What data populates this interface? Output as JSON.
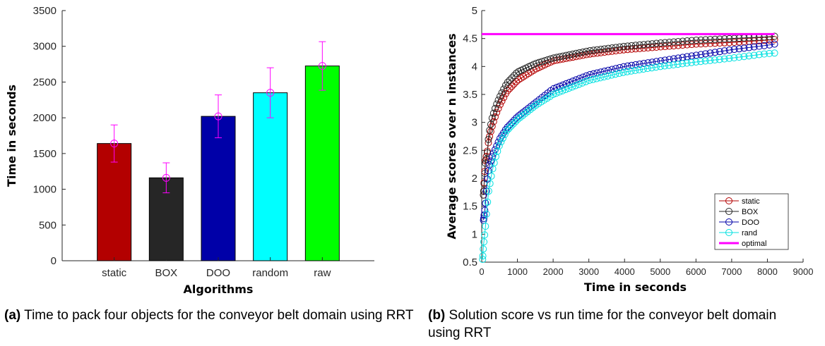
{
  "chart_data": [
    {
      "type": "bar",
      "categories": [
        "static",
        "BOX",
        "DOO",
        "random",
        "raw"
      ],
      "values": [
        1640,
        1160,
        2020,
        2350,
        2725
      ],
      "error": [
        260,
        210,
        300,
        350,
        340
      ],
      "colors": [
        "#b30000",
        "#262626",
        "#0000a8",
        "#00ffff",
        "#00ff00"
      ],
      "error_color": "#ff00ff",
      "xlabel": "Algorithms",
      "ylabel": "Time in seconds",
      "ylim": [
        0,
        3500
      ],
      "yticks": [
        "0",
        "500",
        "1000",
        "1500",
        "2000",
        "2500",
        "3000",
        "3500"
      ],
      "ytick_values": [
        0,
        500,
        1000,
        1500,
        2000,
        2500,
        3000,
        3500
      ],
      "caption_label": "(a)",
      "caption_text": "Time to pack four objects for the conveyor belt domain using RRT"
    },
    {
      "type": "line",
      "xlabel": "Time in seconds",
      "ylabel": "Average scores over n instances",
      "xlim": [
        0,
        9000
      ],
      "ylim": [
        0.5,
        5
      ],
      "xticks": [
        "0",
        "1000",
        "2000",
        "3000",
        "4000",
        "5000",
        "6000",
        "7000",
        "8000",
        "9000"
      ],
      "xtick_values": [
        0,
        1000,
        2000,
        3000,
        4000,
        5000,
        6000,
        7000,
        8000,
        9000
      ],
      "yticks": [
        "0.5",
        "1",
        "1.5",
        "2",
        "2.5",
        "3",
        "3.5",
        "4",
        "4.5",
        "5"
      ],
      "ytick_values": [
        0.5,
        1,
        1.5,
        2,
        2.5,
        3,
        3.5,
        4,
        4.5,
        5
      ],
      "legend_position": "bottom-right",
      "series": [
        {
          "name": "static",
          "color": "#b30000",
          "marker": "circle",
          "x": [
            50,
            100,
            150,
            200,
            300,
            400,
            500,
            700,
            1000,
            1500,
            2000,
            3000,
            4000,
            5000,
            6000,
            7000,
            8000,
            8200
          ],
          "y": [
            1.7,
            2.3,
            2.45,
            2.7,
            2.95,
            3.15,
            3.3,
            3.55,
            3.75,
            3.95,
            4.1,
            4.22,
            4.3,
            4.35,
            4.4,
            4.43,
            4.47,
            4.48
          ]
        },
        {
          "name": "BOX",
          "color": "#262626",
          "marker": "circle",
          "x": [
            50,
            100,
            150,
            200,
            300,
            400,
            500,
            700,
            1000,
            1500,
            2000,
            3000,
            4000,
            5000,
            6000,
            7000,
            8000,
            8200
          ],
          "y": [
            1.7,
            2.25,
            2.4,
            2.8,
            3.1,
            3.3,
            3.45,
            3.7,
            3.9,
            4.05,
            4.15,
            4.28,
            4.36,
            4.42,
            4.47,
            4.5,
            4.53,
            4.54
          ]
        },
        {
          "name": "DOO",
          "color": "#0000a8",
          "marker": "circle",
          "x": [
            50,
            100,
            150,
            200,
            300,
            400,
            500,
            700,
            1000,
            1500,
            2000,
            3000,
            4000,
            5000,
            6000,
            7000,
            8000,
            8200
          ],
          "y": [
            1.25,
            1.5,
            1.95,
            2.2,
            2.4,
            2.55,
            2.7,
            2.9,
            3.1,
            3.35,
            3.6,
            3.85,
            4.0,
            4.1,
            4.2,
            4.3,
            4.38,
            4.4
          ]
        },
        {
          "name": "rand",
          "color": "#00e0e0",
          "marker": "circle",
          "x": [
            25,
            50,
            100,
            150,
            200,
            300,
            400,
            500,
            700,
            1000,
            1500,
            2000,
            3000,
            4000,
            5000,
            6000,
            7000,
            8000,
            8200
          ],
          "y": [
            0.55,
            0.8,
            1.1,
            1.5,
            1.8,
            2.15,
            2.4,
            2.6,
            2.85,
            3.05,
            3.3,
            3.5,
            3.75,
            3.9,
            4.0,
            4.08,
            4.15,
            4.23,
            4.24
          ]
        },
        {
          "name": "optimal",
          "color": "#ff00ff",
          "marker": "none",
          "x": [
            0,
            8200
          ],
          "y": [
            4.58,
            4.58
          ]
        }
      ],
      "caption_label": "(b)",
      "caption_text": "Solution score vs run time for the conveyor belt domain",
      "caption_text_2": "using RRT"
    }
  ]
}
